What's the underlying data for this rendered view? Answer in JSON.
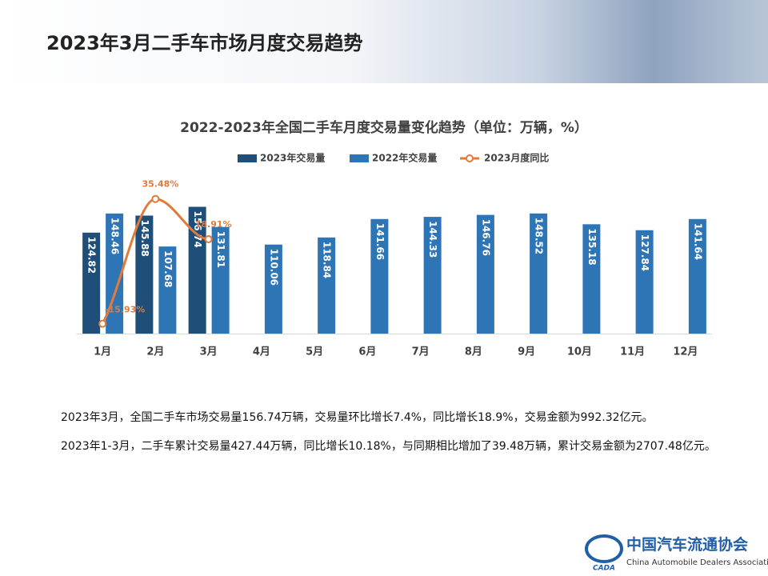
{
  "header": {
    "title": "2023年3月二手车市场月度交易趋势"
  },
  "chart_data": {
    "type": "bar-line",
    "title": "2022-2023年全国二手车月度交易量变化趋势（单位：万辆，%）",
    "categories": [
      "1月",
      "2月",
      "3月",
      "4月",
      "5月",
      "6月",
      "7月",
      "8月",
      "9月",
      "10月",
      "11月",
      "12月"
    ],
    "series": [
      {
        "name": "2023年交易量",
        "type": "bar",
        "color": "#1f4e79",
        "values": [
          124.82,
          145.88,
          156.74,
          null,
          null,
          null,
          null,
          null,
          null,
          null,
          null,
          null
        ]
      },
      {
        "name": "2022年交易量",
        "type": "bar",
        "color": "#2e75b6",
        "values": [
          148.46,
          107.68,
          131.81,
          110.06,
          118.84,
          141.66,
          144.33,
          146.76,
          148.52,
          135.18,
          127.84,
          141.64
        ]
      },
      {
        "name": "2023月度同比",
        "type": "line",
        "axis": "y2",
        "color": "#e07b39",
        "values": [
          -15.93,
          35.48,
          18.91,
          null,
          null,
          null,
          null,
          null,
          null,
          null,
          null,
          null
        ],
        "value_labels": [
          "-15.93%",
          "35.48%",
          "18.91%",
          null,
          null,
          null,
          null,
          null,
          null,
          null,
          null,
          null
        ]
      }
    ],
    "ylim": [
      0,
      180
    ],
    "y2lim": [
      -20,
      40
    ],
    "legend": "top",
    "grid": false
  },
  "paragraphs": [
    "2023年3月，全国二手车市场交易量156.74万辆，交易量环比增长7.4%，同比增长18.9%，交易金额为992.32亿元。",
    "2023年1-3月，二手车累计交易量427.44万辆，同比增长10.18%，与同期相比增加了39.48万辆，累计交易金额为2707.48亿元。"
  ],
  "logo": {
    "name": "中国汽车流通协会",
    "english": "China Automobile Dealers Association",
    "mark": "CADA"
  }
}
